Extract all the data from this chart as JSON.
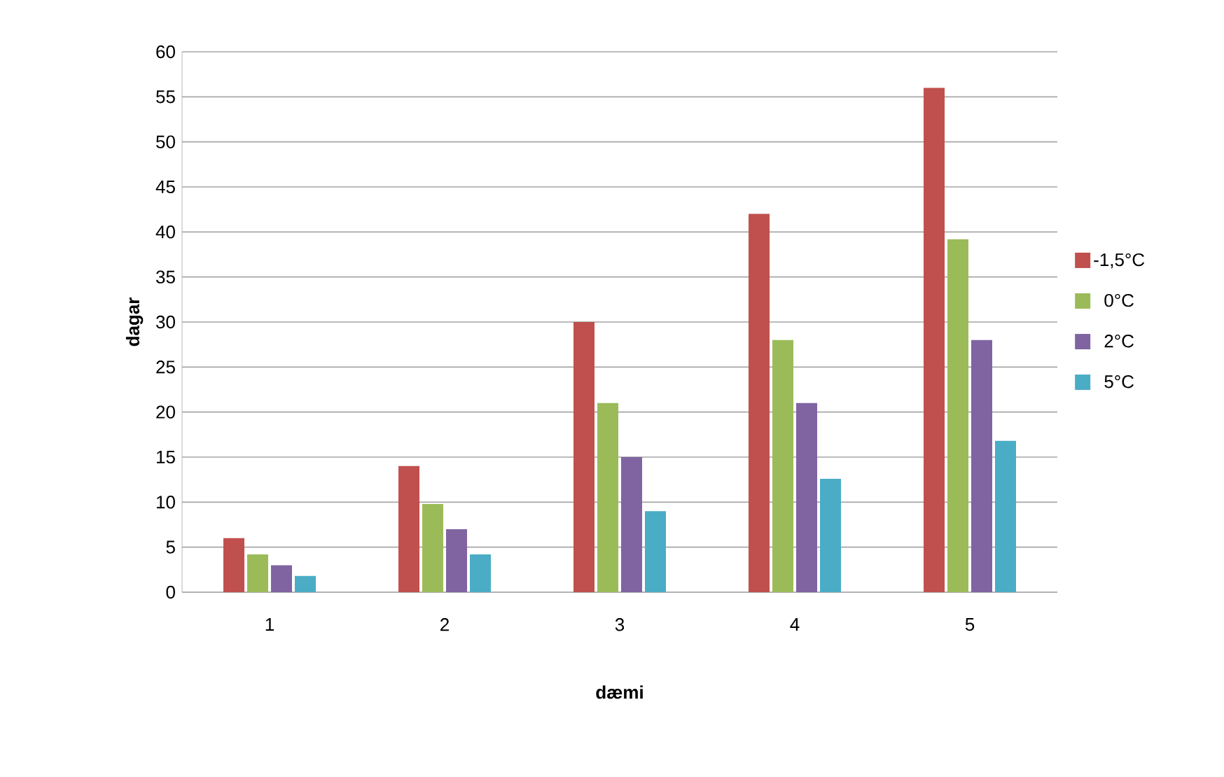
{
  "chart_data": {
    "type": "bar",
    "xlabel": "dæmi",
    "ylabel": "dagar",
    "categories": [
      "1",
      "2",
      "3",
      "4",
      "5"
    ],
    "series": [
      {
        "name": "-1,5°C",
        "color": "#c0504d",
        "values": [
          6,
          14,
          30,
          42,
          56
        ]
      },
      {
        "name": "0°C",
        "color": "#9bbb59",
        "values": [
          4.2,
          9.8,
          21,
          28,
          39.2
        ]
      },
      {
        "name": "2°C",
        "color": "#8064a2",
        "values": [
          3,
          7,
          15,
          21,
          28
        ]
      },
      {
        "name": "5°C",
        "color": "#4bacc6",
        "values": [
          1.8,
          4.2,
          9,
          12.6,
          16.8
        ]
      }
    ],
    "ylim": [
      0,
      60
    ],
    "yticks": [
      0,
      5,
      10,
      15,
      20,
      25,
      30,
      35,
      40,
      45,
      50,
      55,
      60
    ],
    "grid": "y",
    "legend": "right"
  }
}
